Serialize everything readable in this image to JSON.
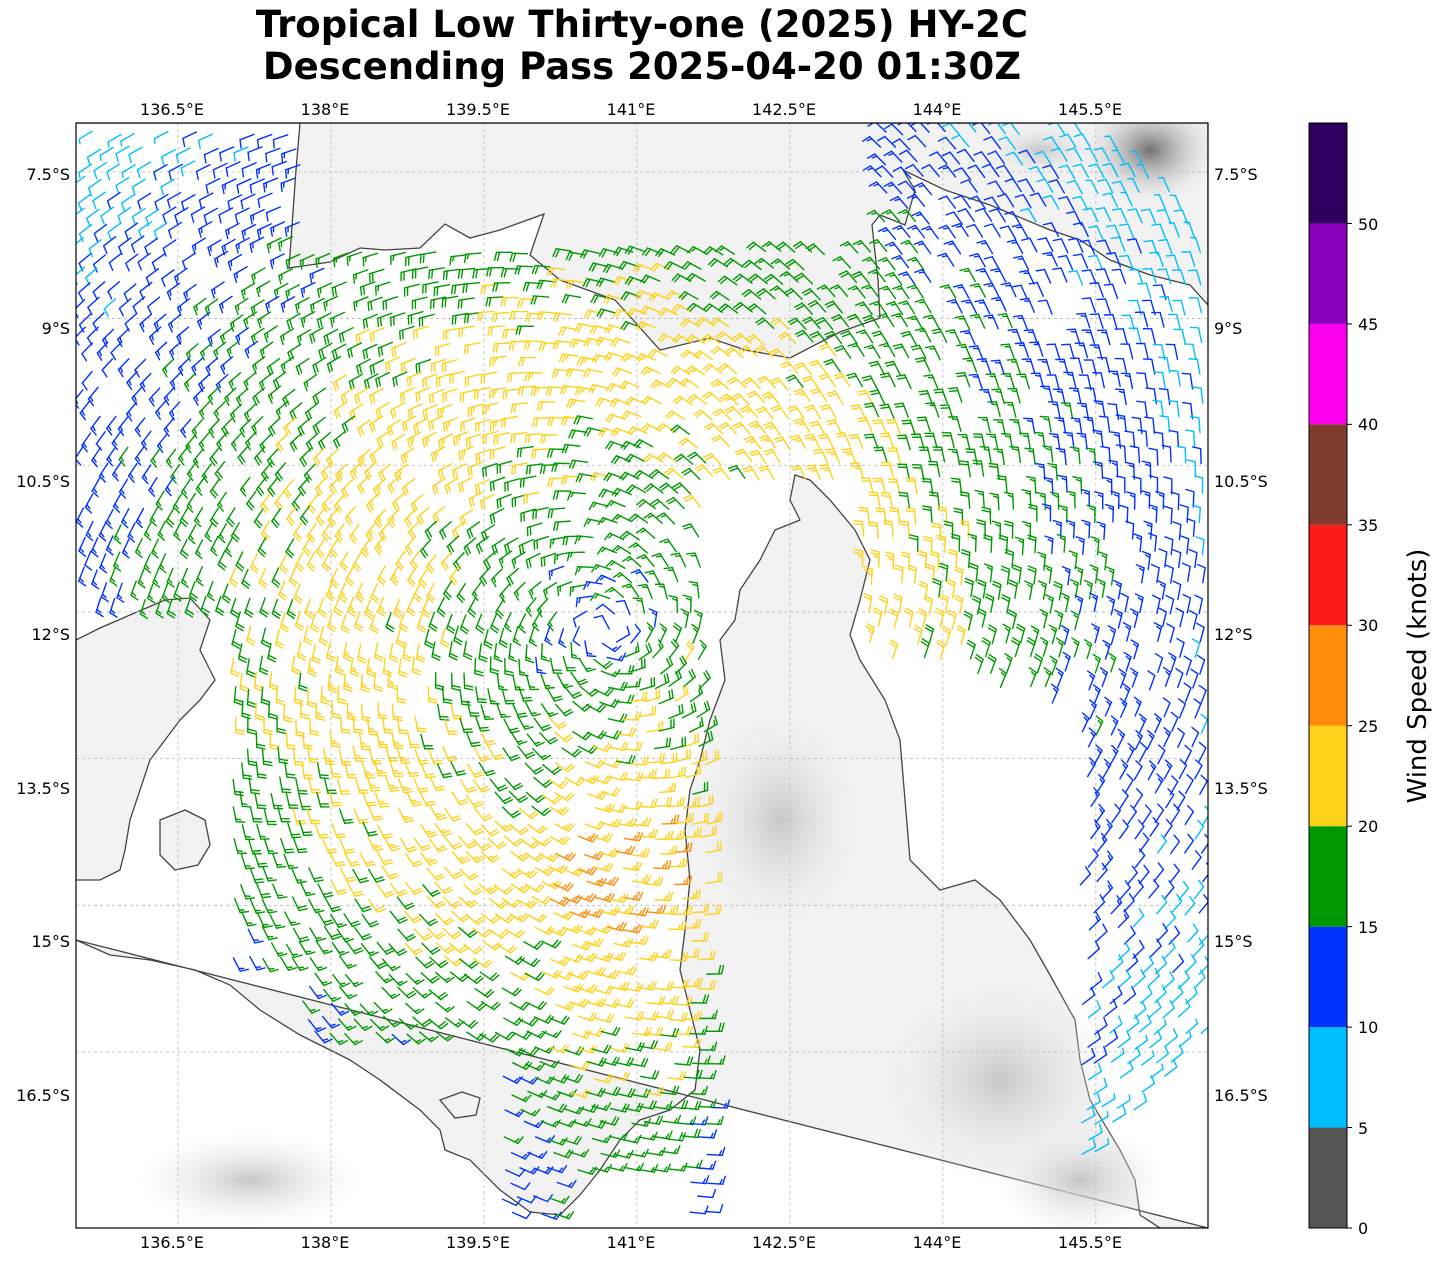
{
  "title": {
    "line1": "Tropical Low Thirty-one (2025) HY-2C",
    "line2": "Descending Pass 2025-04-20 01:30Z"
  },
  "map": {
    "lon_range": [
      135.5,
      146.6
    ],
    "lat_range": [
      -18.3,
      -7.0
    ],
    "lon_ticks": [
      "136.5°E",
      "138°E",
      "139.5°E",
      "141°E",
      "142.5°E",
      "144°E",
      "145.5°E"
    ],
    "lat_ticks": [
      "7.5°S",
      "9°S",
      "10.5°S",
      "12°S",
      "13.5°S",
      "15°S",
      "16.5°S"
    ],
    "gridlines": true,
    "center": {
      "lon": 140.7,
      "lat": -12.2
    },
    "coastline_color": "#444444",
    "background": "grayscale terrain",
    "wind_units": "knots"
  },
  "colorbar": {
    "label": "Wind Speed (knots)",
    "ticks": [
      "0",
      "5",
      "10",
      "15",
      "20",
      "25",
      "30",
      "35",
      "40",
      "45",
      "50"
    ],
    "colors": [
      "#555555",
      "#00bfff",
      "#0033ff",
      "#009900",
      "#ffd11a",
      "#ff8c0a",
      "#ff1a1a",
      "#7f3b2b",
      "#ff00ee",
      "#8800bb",
      "#2d0060"
    ],
    "range": [
      0,
      55
    ]
  }
}
